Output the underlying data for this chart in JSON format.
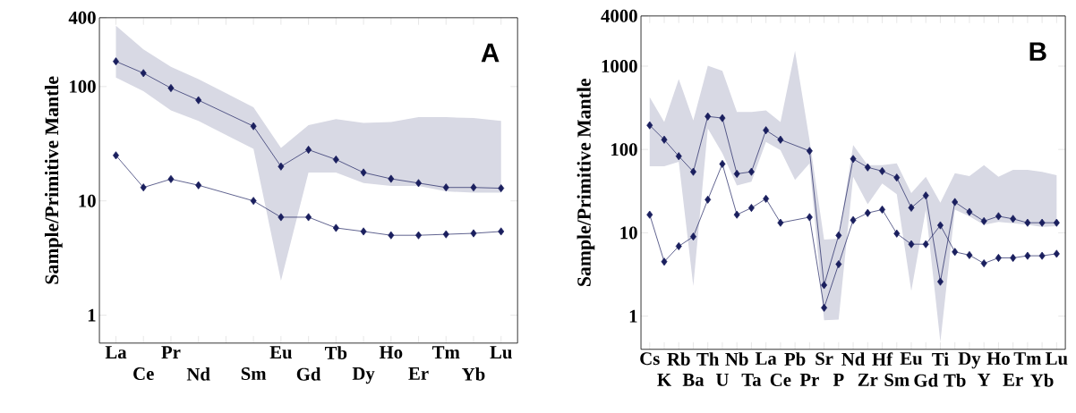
{
  "chart_data": [
    {
      "type": "line",
      "title": "A",
      "ylabel": "Sample/Primitive Mantle",
      "log": "y",
      "marker": "diamond",
      "line_style": "solid",
      "categories": [
        "La",
        "Ce",
        "Pr",
        "Nd",
        null,
        "Sm",
        "Eu",
        "Gd",
        "Tb",
        "Dy",
        "Ho",
        "Er",
        "Tm",
        "Yb",
        "Lu"
      ],
      "ylim": [
        0.57,
        400
      ],
      "yticks": [
        1,
        10,
        100,
        400
      ],
      "series": [
        {
          "color": "#1a1f5e",
          "values": [
            166,
            131,
            97,
            76,
            null,
            45,
            20,
            28,
            23,
            17.7,
            15.6,
            14.3,
            13.1,
            13.1,
            12.9
          ],
          "lower": [
            120,
            91,
            62,
            50,
            null,
            28.5,
            2.0,
            17.7,
            17.7,
            14.3,
            13.5,
            13.5,
            12.1,
            11.8,
            11.8
          ],
          "upper": [
            340,
            211,
            149,
            116,
            null,
            66,
            29,
            46,
            52,
            48,
            49,
            54,
            54,
            53,
            50
          ]
        },
        {
          "color": "#1a1f5e",
          "values": [
            25,
            13.1,
            15.5,
            13.7,
            null,
            10.0,
            7.2,
            7.2,
            5.8,
            5.4,
            5.0,
            5.0,
            5.1,
            5.2,
            5.4
          ]
        }
      ]
    },
    {
      "type": "line",
      "title": "B",
      "ylabel": "Sample/Primitive Mantle",
      "log": "y",
      "marker": "diamond",
      "line_style": "solid",
      "categories": [
        "Cs",
        "K",
        "Rb",
        "Ba",
        "Th",
        "U",
        "Nb",
        "Ta",
        "La",
        "Ce",
        "Pb",
        "Pr",
        "Sr",
        "P",
        "Nd",
        "Zr",
        "Hf",
        "Sm",
        "Eu",
        "Gd",
        "Ti",
        "Tb",
        "Dy",
        "Y",
        "Ho",
        "Er",
        "Tm",
        "Yb",
        "Lu"
      ],
      "ylim": [
        0.4,
        4000
      ],
      "yticks": [
        1,
        10,
        100,
        1000,
        4000
      ],
      "series": [
        {
          "color": "#1a1f5e",
          "values": [
            195,
            131,
            83,
            54,
            249,
            238,
            51,
            54,
            170,
            131,
            null,
            96,
            2.36,
            9.3,
            77,
            61,
            55,
            46,
            20,
            28,
            2.59,
            23.4,
            17.8,
            13.8,
            15.8,
            14.7,
            13.2,
            13.2,
            13.2
          ],
          "lower": [
            63,
            63,
            71,
            2.3,
            178,
            90,
            37,
            41,
            123,
            98,
            43,
            68,
            0.89,
            0.91,
            47,
            22,
            39,
            29,
            2.0,
            19,
            0.49,
            19,
            15.8,
            12.5,
            13.5,
            13,
            12.5,
            11.8,
            12
          ],
          "upper": [
            424,
            213,
            700,
            223,
            1010,
            880,
            281,
            281,
            294,
            213,
            1520,
            129,
            8.3,
            8.5,
            113,
            65,
            65,
            68,
            30,
            47,
            23,
            52,
            48,
            65,
            47,
            57,
            57,
            54,
            49
          ]
        },
        {
          "color": "#1a1f5e",
          "values": [
            16.5,
            4.5,
            6.9,
            9.0,
            25,
            67,
            16.5,
            19.9,
            25.6,
            13.2,
            null,
            15.4,
            1.26,
            4.2,
            14.2,
            17.3,
            19,
            9.8,
            7.3,
            7.3,
            12.3,
            5.9,
            5.4,
            4.3,
            5.0,
            5.0,
            5.3,
            5.3,
            5.6
          ]
        }
      ]
    }
  ]
}
